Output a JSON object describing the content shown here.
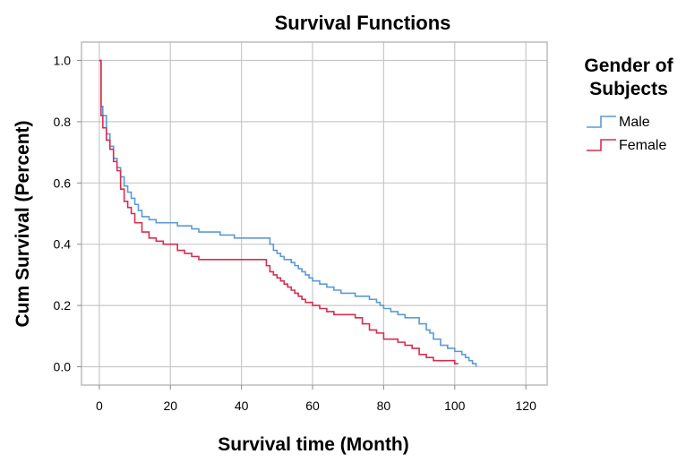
{
  "chart_data": {
    "type": "line",
    "step": true,
    "title": "Survival Functions",
    "xlabel": "Survival time (Month)",
    "ylabel": "Cum Survival (Percent)",
    "xlim": [
      -5,
      126
    ],
    "ylim": [
      -0.06,
      1.06
    ],
    "xticks": [
      0,
      20,
      40,
      60,
      80,
      100,
      120
    ],
    "yticks": [
      0.0,
      0.2,
      0.4,
      0.6,
      0.8,
      1.0
    ],
    "xtick_labels": [
      "0",
      "20",
      "40",
      "60",
      "80",
      "100",
      "120"
    ],
    "ytick_labels": [
      "0.0",
      "0.2",
      "0.4",
      "0.6",
      "0.8",
      "1.0"
    ],
    "grid": true,
    "legend": {
      "title": "Gender of Subjects",
      "title_lines": [
        "Gender of",
        "Subjects"
      ],
      "position": "right"
    },
    "series": [
      {
        "name": "Male",
        "color": "#5b9bd5",
        "x": [
          0,
          0.5,
          1,
          2,
          3,
          4,
          5,
          6,
          7,
          8,
          9,
          10,
          11,
          12,
          14,
          16,
          18,
          20,
          22,
          24,
          26,
          28,
          30,
          32,
          34,
          36,
          38,
          40,
          42,
          44,
          46,
          48,
          49,
          50,
          51,
          52,
          53,
          54,
          55,
          56,
          57,
          58,
          59,
          60,
          62,
          64,
          66,
          68,
          70,
          72,
          74,
          76,
          78,
          79,
          80,
          82,
          84,
          86,
          88,
          90,
          92,
          93,
          94,
          96,
          98,
          100,
          102,
          103,
          104,
          105,
          106
        ],
        "y": [
          1.0,
          0.85,
          0.82,
          0.76,
          0.72,
          0.68,
          0.65,
          0.62,
          0.59,
          0.57,
          0.55,
          0.53,
          0.51,
          0.49,
          0.48,
          0.47,
          0.47,
          0.47,
          0.46,
          0.46,
          0.45,
          0.44,
          0.44,
          0.44,
          0.43,
          0.43,
          0.42,
          0.42,
          0.42,
          0.42,
          0.42,
          0.4,
          0.38,
          0.37,
          0.36,
          0.35,
          0.35,
          0.34,
          0.33,
          0.32,
          0.31,
          0.3,
          0.29,
          0.28,
          0.27,
          0.26,
          0.25,
          0.24,
          0.24,
          0.23,
          0.23,
          0.22,
          0.21,
          0.2,
          0.19,
          0.18,
          0.17,
          0.16,
          0.16,
          0.14,
          0.12,
          0.11,
          0.09,
          0.07,
          0.06,
          0.05,
          0.04,
          0.03,
          0.02,
          0.01,
          0.0
        ]
      },
      {
        "name": "Female",
        "color": "#d62e4f",
        "x": [
          0,
          0.5,
          1,
          2,
          3,
          4,
          5,
          6,
          7,
          8,
          9,
          10,
          12,
          14,
          16,
          18,
          20,
          22,
          24,
          26,
          28,
          30,
          35,
          40,
          45,
          47,
          48,
          49,
          50,
          51,
          52,
          53,
          54,
          55,
          56,
          57,
          58,
          60,
          62,
          64,
          66,
          70,
          72,
          74,
          76,
          78,
          80,
          84,
          86,
          88,
          90,
          92,
          94,
          96,
          98,
          100,
          101
        ],
        "y": [
          1.0,
          0.82,
          0.78,
          0.74,
          0.71,
          0.67,
          0.64,
          0.58,
          0.54,
          0.52,
          0.5,
          0.47,
          0.44,
          0.42,
          0.41,
          0.4,
          0.4,
          0.38,
          0.37,
          0.36,
          0.35,
          0.35,
          0.35,
          0.35,
          0.35,
          0.33,
          0.31,
          0.3,
          0.29,
          0.28,
          0.27,
          0.26,
          0.25,
          0.24,
          0.23,
          0.22,
          0.21,
          0.2,
          0.19,
          0.18,
          0.17,
          0.17,
          0.16,
          0.14,
          0.12,
          0.11,
          0.09,
          0.08,
          0.07,
          0.06,
          0.04,
          0.03,
          0.02,
          0.02,
          0.02,
          0.01,
          0.01
        ]
      }
    ]
  }
}
